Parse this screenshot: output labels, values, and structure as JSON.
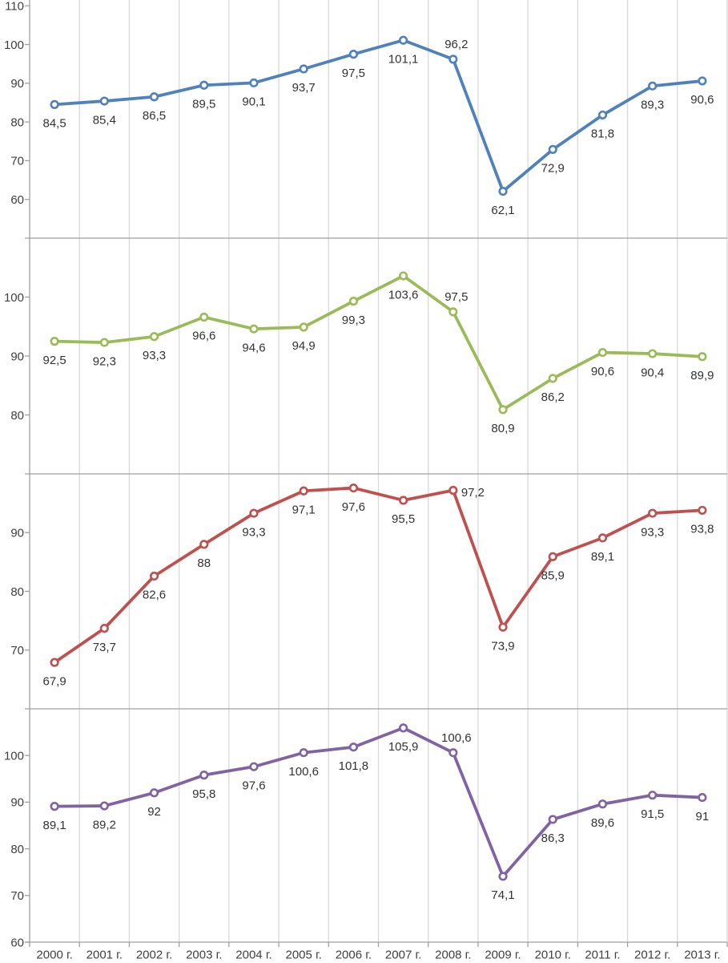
{
  "chart_data": {
    "type": "line",
    "title": "",
    "xlabel": "",
    "ylabel": "",
    "legend": "none",
    "grid": "vertical-gridlines-only",
    "layout": "four stacked line-chart panels sharing one category x-axis, labels only under bottom panel",
    "categories": [
      "2000 г.",
      "2001 г.",
      "2002 г.",
      "2003 г.",
      "2004 г.",
      "2005 г.",
      "2006 г.",
      "2007 г.",
      "2008 г.",
      "2009 г.",
      "2010 г.",
      "2011 г.",
      "2012 г.",
      "2013 г."
    ],
    "panels": [
      {
        "series_name": "blue-series",
        "color": "#4F81BD",
        "values": [
          84.5,
          85.4,
          86.5,
          89.5,
          90.1,
          93.7,
          97.5,
          101.1,
          96.2,
          62.1,
          72.9,
          81.8,
          89.3,
          90.6
        ],
        "labels": [
          "84,5",
          "85,4",
          "86,5",
          "89,5",
          "90,1",
          "93,7",
          "97,5",
          "101,1",
          "96,2",
          "62,1",
          "72,9",
          "81,8",
          "89,3",
          "90,6"
        ],
        "yticks": [
          110,
          100,
          90,
          80,
          70,
          60
        ],
        "ylim": [
          50,
          111.5
        ],
        "label_positions": {
          "8": "above"
        }
      },
      {
        "series_name": "green-series",
        "color": "#9BBB59",
        "values": [
          92.5,
          92.3,
          93.3,
          96.6,
          94.6,
          94.9,
          99.3,
          103.6,
          97.5,
          80.9,
          86.2,
          90.6,
          90.4,
          89.9
        ],
        "labels": [
          "92,5",
          "92,3",
          "93,3",
          "96,6",
          "94,6",
          "94,9",
          "99,3",
          "103,6",
          "97,5",
          "80,9",
          "86,2",
          "90,6",
          "90,4",
          "89,9"
        ],
        "yticks": [
          100,
          90,
          80
        ],
        "ylim": [
          70,
          110
        ],
        "label_positions": {
          "8": "above"
        }
      },
      {
        "series_name": "red-series",
        "color": "#C0504D",
        "values": [
          67.9,
          73.7,
          82.6,
          88,
          93.3,
          97.1,
          97.6,
          95.5,
          97.2,
          73.9,
          85.9,
          89.1,
          93.3,
          93.8
        ],
        "labels": [
          "67,9",
          "73,7",
          "82,6",
          "88",
          "93,3",
          "97,1",
          "97,6",
          "95,5",
          "97,2",
          "73,9",
          "85,9",
          "89,1",
          "93,3",
          "93,8"
        ],
        "yticks": [
          90,
          80,
          70
        ],
        "ylim": [
          60,
          100
        ],
        "label_positions": {
          "8": "right"
        }
      },
      {
        "series_name": "purple-series",
        "color": "#8064A2",
        "values": [
          89.1,
          89.2,
          92,
          95.8,
          97.6,
          100.6,
          101.8,
          105.9,
          100.6,
          74.1,
          86.3,
          89.6,
          91.5,
          91
        ],
        "labels": [
          "89,1",
          "89,2",
          "92",
          "95,8",
          "97,6",
          "100,6",
          "101,8",
          "105,9",
          "100,6",
          "74,1",
          "86,3",
          "89,6",
          "91,5",
          "91"
        ],
        "yticks": [
          100,
          90,
          80,
          70,
          60
        ],
        "ylim": [
          60,
          110
        ],
        "label_positions": {
          "8": "above"
        }
      }
    ]
  },
  "colors": {
    "background": "#ffffff",
    "gridline": "#d9d9d9",
    "axis": "#a0a0a0",
    "tick_text": "#404040",
    "label_text": "#333333",
    "marker_fill": "#ffffff"
  }
}
